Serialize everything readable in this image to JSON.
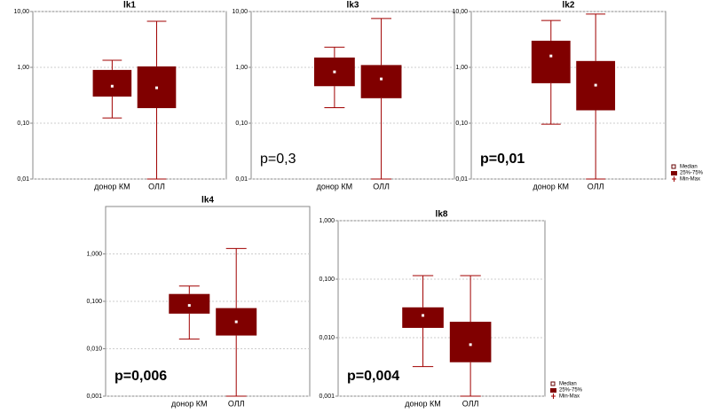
{
  "chart_data": [
    {
      "type": "box",
      "title": "lk1",
      "categories": [
        "донор КМ",
        "ОЛЛ"
      ],
      "color": "#800000",
      "log_scale": true,
      "grid": true,
      "ylim": [
        0.01,
        10
      ],
      "yticks": [
        {
          "value": 0.01,
          "label": "0,01"
        },
        {
          "value": 0.1,
          "label": "0,10"
        },
        {
          "value": 1,
          "label": "1,00"
        },
        {
          "value": 10,
          "label": "10,00"
        }
      ],
      "boxes": [
        {
          "min": 0.124,
          "q1": 0.3,
          "median": 0.46,
          "q3": 0.9,
          "max": 1.34
        },
        {
          "min": 0.01,
          "q1": 0.186,
          "median": 0.43,
          "q3": 1.04,
          "max": 6.7
        }
      ]
    },
    {
      "type": "box",
      "title": "lk3",
      "categories": [
        "донор КМ",
        "ОЛЛ"
      ],
      "color": "#800000",
      "log_scale": true,
      "grid": true,
      "ylim": [
        0.01,
        10
      ],
      "yticks": [
        {
          "value": 0.01,
          "label": "0,01"
        },
        {
          "value": 0.1,
          "label": "0,10"
        },
        {
          "value": 1,
          "label": "1,00"
        },
        {
          "value": 10,
          "label": "10,00"
        }
      ],
      "boxes": [
        {
          "min": 0.19,
          "q1": 0.46,
          "median": 0.83,
          "q3": 1.5,
          "max": 2.3
        },
        {
          "min": 0.01,
          "q1": 0.28,
          "median": 0.62,
          "q3": 1.1,
          "max": 7.5
        }
      ],
      "annotation": "p=0,3",
      "annotation_color": "#000000",
      "annotation_bold": false
    },
    {
      "type": "box",
      "title": "lk2",
      "categories": [
        "донор КМ",
        "ОЛЛ"
      ],
      "color": "#800000",
      "log_scale": true,
      "grid": true,
      "ylim": [
        0.01,
        10
      ],
      "yticks": [
        {
          "value": 0.01,
          "label": "0,01"
        },
        {
          "value": 0.1,
          "label": "0,10"
        },
        {
          "value": 1,
          "label": "1,00"
        },
        {
          "value": 10,
          "label": "10,00"
        }
      ],
      "boxes": [
        {
          "min": 0.096,
          "q1": 0.52,
          "median": 1.6,
          "q3": 3.0,
          "max": 6.9
        },
        {
          "min": 0.01,
          "q1": 0.17,
          "median": 0.48,
          "q3": 1.3,
          "max": 9.0
        }
      ],
      "annotation": "p=0,01",
      "annotation_color": "#e02020",
      "annotation_bold": true,
      "legend": [
        "Median",
        "25%-75%",
        "Min-Max"
      ]
    },
    {
      "type": "box",
      "title": "lk4",
      "categories": [
        "донор КМ",
        "ОЛЛ"
      ],
      "color": "#800000",
      "log_scale": true,
      "grid": true,
      "ylim": [
        0.001,
        10
      ],
      "yticks": [
        {
          "value": 0.001,
          "label": "0,001"
        },
        {
          "value": 0.01,
          "label": "0,010"
        },
        {
          "value": 0.1,
          "label": "0,100"
        },
        {
          "value": 1,
          "label": "1,000"
        }
      ],
      "boxes": [
        {
          "min": 0.016,
          "q1": 0.055,
          "median": 0.082,
          "q3": 0.143,
          "max": 0.21
        },
        {
          "min": 0.001,
          "q1": 0.019,
          "median": 0.037,
          "q3": 0.072,
          "max": 1.3
        }
      ],
      "annotation": "p=0,006",
      "annotation_color": "#e02020",
      "annotation_bold": true
    },
    {
      "type": "box",
      "title": "lk8",
      "categories": [
        "донор КМ",
        "ОЛЛ"
      ],
      "color": "#800000",
      "log_scale": true,
      "grid": true,
      "ylim": [
        0.001,
        1
      ],
      "yticks": [
        {
          "value": 0.001,
          "label": "0,001"
        },
        {
          "value": 0.01,
          "label": "0,010"
        },
        {
          "value": 0.1,
          "label": "0,100"
        },
        {
          "value": 1,
          "label": "1,000"
        }
      ],
      "boxes": [
        {
          "min": 0.0032,
          "q1": 0.0147,
          "median": 0.024,
          "q3": 0.033,
          "max": 0.115
        },
        {
          "min": 0.001,
          "q1": 0.0038,
          "median": 0.0076,
          "q3": 0.0187,
          "max": 0.115
        }
      ],
      "annotation": "p=0,004",
      "annotation_color": "#e02020",
      "annotation_bold": true,
      "legend": [
        "Median",
        "25%-75%",
        "Min-Max"
      ]
    }
  ]
}
